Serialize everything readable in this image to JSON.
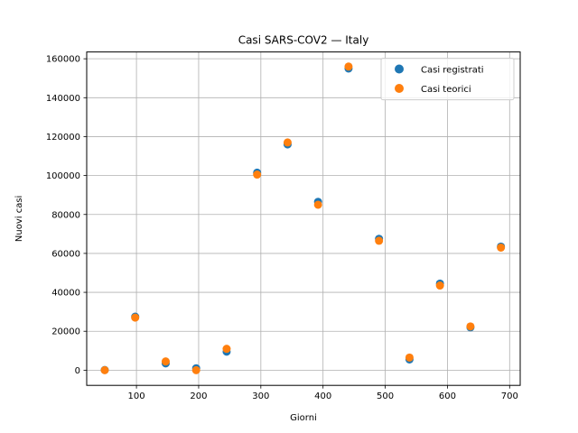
{
  "chart_data": {
    "type": "scatter",
    "title": "Casi SARS-COV2 — Italy",
    "xlabel": "Giorni",
    "ylabel": "Nuovi casi",
    "xlim": [
      20,
      717
    ],
    "ylim": [
      -7800,
      163500
    ],
    "xticks": [
      100,
      200,
      300,
      400,
      500,
      600,
      700
    ],
    "yticks": [
      0,
      20000,
      40000,
      60000,
      80000,
      100000,
      120000,
      140000,
      160000
    ],
    "grid": true,
    "legend_position": "upper right",
    "series": [
      {
        "name": "Casi registrati",
        "color": "#1f77b4",
        "points": [
          [
            49,
            100
          ],
          [
            98,
            27500
          ],
          [
            147,
            3500
          ],
          [
            196,
            1000
          ],
          [
            245,
            9500
          ],
          [
            294,
            101500
          ],
          [
            343,
            116000
          ],
          [
            392,
            86500
          ],
          [
            441,
            155000
          ],
          [
            490,
            67500
          ],
          [
            539,
            5500
          ],
          [
            588,
            44500
          ],
          [
            637,
            22000
          ],
          [
            686,
            63500
          ]
        ]
      },
      {
        "name": "Casi teorici",
        "color": "#ff7f0e",
        "points": [
          [
            49,
            0
          ],
          [
            98,
            27000
          ],
          [
            147,
            4500
          ],
          [
            196,
            0
          ],
          [
            245,
            11000
          ],
          [
            294,
            100500
          ],
          [
            343,
            117000
          ],
          [
            392,
            85000
          ],
          [
            441,
            156000
          ],
          [
            490,
            66500
          ],
          [
            539,
            6500
          ],
          [
            588,
            43500
          ],
          [
            637,
            22500
          ],
          [
            686,
            63000
          ]
        ]
      }
    ]
  }
}
